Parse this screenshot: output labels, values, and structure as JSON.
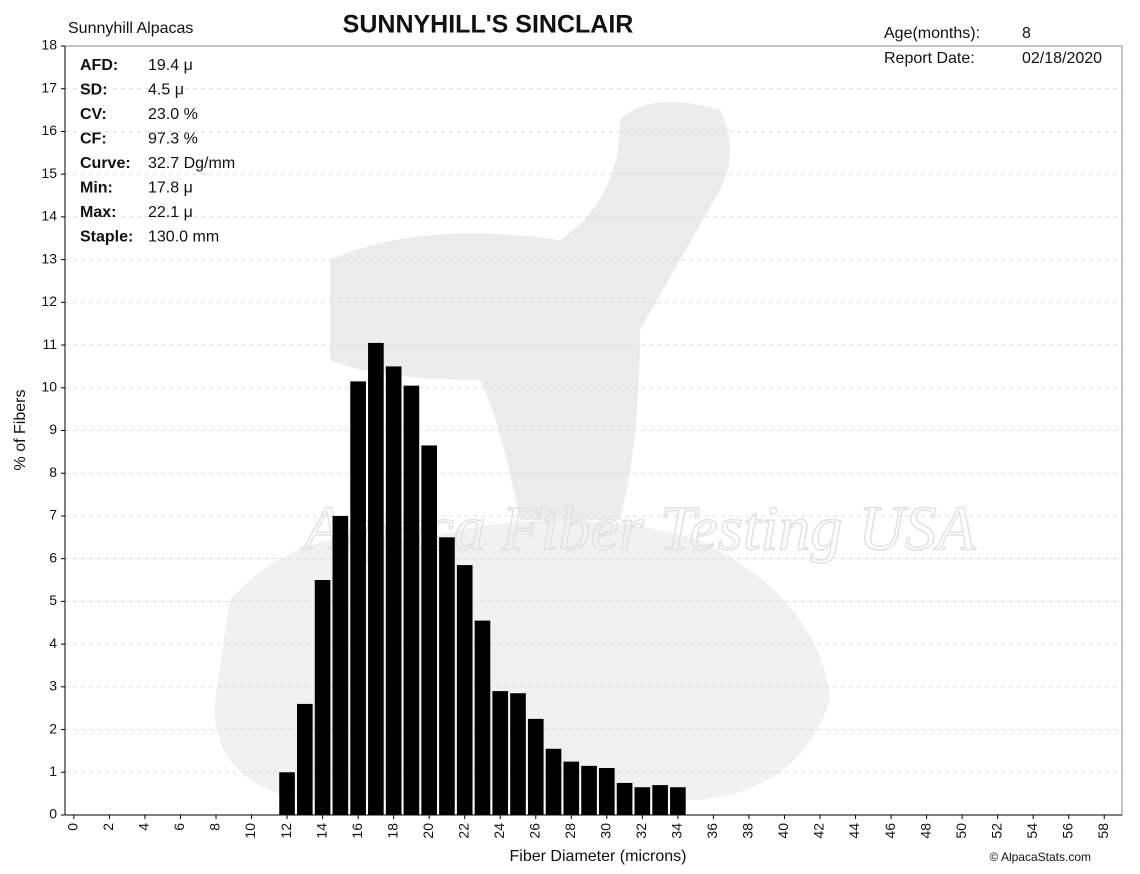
{
  "chart_data": {
    "type": "bar",
    "title": "SUNNYHILL'S SINCLAIR",
    "farm": "Sunnyhill Alpacas",
    "info": [
      {
        "label": "Age(months):",
        "value": "8"
      },
      {
        "label": "Report Date:",
        "value": "02/18/2020"
      }
    ],
    "stats": [
      {
        "label": "AFD:",
        "value": "19.4 μ"
      },
      {
        "label": "SD:",
        "value": "4.5 μ"
      },
      {
        "label": "CV:",
        "value": "23.0 %"
      },
      {
        "label": "CF:",
        "value": "97.3 %"
      },
      {
        "label": "Curve:",
        "value": "32.7 Dg/mm"
      },
      {
        "label": "Min:",
        "value": "17.8 μ"
      },
      {
        "label": "Max:",
        "value": "22.1 μ"
      },
      {
        "label": "Staple:",
        "value": "130.0 mm"
      }
    ],
    "watermark": "Alpaca Fiber Testing USA",
    "credit": "© AlpacaStats.com",
    "xlabel": "Fiber Diameter (microns)",
    "ylabel": "% of Fibers",
    "x": [
      12,
      13,
      14,
      15,
      16,
      17,
      18,
      19,
      20,
      21,
      22,
      23,
      24,
      25,
      26,
      27,
      28,
      29,
      30,
      31,
      32,
      33,
      34
    ],
    "values": [
      1.0,
      2.6,
      5.5,
      7.0,
      10.15,
      11.05,
      10.5,
      10.05,
      8.65,
      6.5,
      5.85,
      4.55,
      2.9,
      2.85,
      2.25,
      1.55,
      1.25,
      1.15,
      1.1,
      0.75,
      0.65,
      0.7,
      0.65
    ],
    "color": "#000000",
    "xlim": [
      -0.5,
      59
    ],
    "xticks": [
      0,
      2,
      4,
      6,
      8,
      10,
      12,
      14,
      16,
      18,
      20,
      22,
      24,
      26,
      28,
      30,
      32,
      34,
      36,
      38,
      40,
      42,
      44,
      46,
      48,
      50,
      52,
      54,
      56,
      58
    ],
    "ylim": [
      0,
      18
    ],
    "yticks": [
      0,
      1,
      2,
      3,
      4,
      5,
      6,
      7,
      8,
      9,
      10,
      11,
      12,
      13,
      14,
      15,
      16,
      17,
      18
    ],
    "grid": true
  }
}
